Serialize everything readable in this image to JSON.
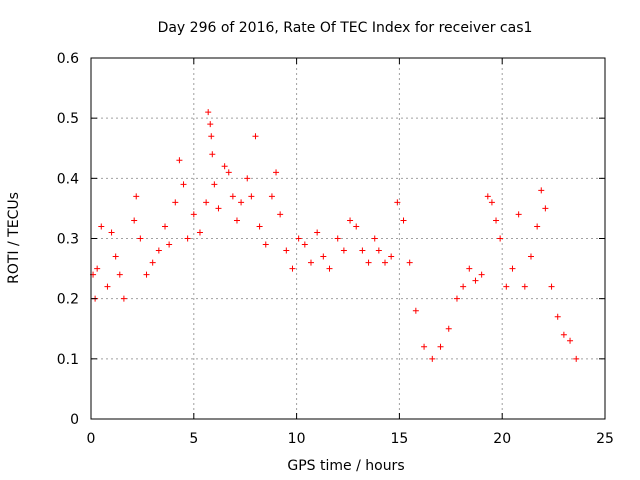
{
  "chart_data": {
    "type": "scatter",
    "title": "Day 296 of 2016, Rate Of TEC Index for receiver cas1",
    "xlabel": "GPS time / hours",
    "ylabel": "ROTI / TECUs",
    "xlim": [
      0,
      25
    ],
    "ylim": [
      0,
      0.6
    ],
    "xticks": [
      0,
      5,
      10,
      15,
      20,
      25
    ],
    "yticks": [
      0,
      0.1,
      0.2,
      0.3,
      0.4,
      0.5,
      0.6
    ],
    "xtick_labels": [
      "0",
      "5",
      "10",
      "15",
      "20",
      "25"
    ],
    "ytick_labels": [
      "0",
      "0.1",
      "0.2",
      "0.3",
      "0.4",
      "0.5",
      "0.6"
    ],
    "grid": true,
    "marker": "+",
    "series_color": "#ff0000",
    "series": [
      {
        "name": "ROTI",
        "points": [
          [
            0.1,
            0.24
          ],
          [
            0.2,
            0.2
          ],
          [
            0.3,
            0.25
          ],
          [
            0.5,
            0.32
          ],
          [
            0.8,
            0.22
          ],
          [
            1.0,
            0.31
          ],
          [
            1.2,
            0.27
          ],
          [
            1.4,
            0.24
          ],
          [
            1.6,
            0.2
          ],
          [
            2.1,
            0.33
          ],
          [
            2.2,
            0.37
          ],
          [
            2.4,
            0.3
          ],
          [
            2.7,
            0.24
          ],
          [
            3.0,
            0.26
          ],
          [
            3.3,
            0.28
          ],
          [
            3.6,
            0.32
          ],
          [
            3.8,
            0.29
          ],
          [
            4.1,
            0.36
          ],
          [
            4.3,
            0.43
          ],
          [
            4.5,
            0.39
          ],
          [
            4.7,
            0.3
          ],
          [
            5.0,
            0.34
          ],
          [
            5.3,
            0.31
          ],
          [
            5.6,
            0.36
          ],
          [
            5.7,
            0.51
          ],
          [
            5.8,
            0.49
          ],
          [
            5.85,
            0.47
          ],
          [
            5.9,
            0.44
          ],
          [
            6.0,
            0.39
          ],
          [
            6.2,
            0.35
          ],
          [
            6.5,
            0.42
          ],
          [
            6.7,
            0.41
          ],
          [
            6.9,
            0.37
          ],
          [
            7.1,
            0.33
          ],
          [
            7.3,
            0.36
          ],
          [
            7.6,
            0.4
          ],
          [
            7.8,
            0.37
          ],
          [
            8.0,
            0.47
          ],
          [
            8.2,
            0.32
          ],
          [
            8.5,
            0.29
          ],
          [
            8.8,
            0.37
          ],
          [
            9.0,
            0.41
          ],
          [
            9.2,
            0.34
          ],
          [
            9.5,
            0.28
          ],
          [
            9.8,
            0.25
          ],
          [
            10.1,
            0.3
          ],
          [
            10.4,
            0.29
          ],
          [
            10.7,
            0.26
          ],
          [
            11.0,
            0.31
          ],
          [
            11.3,
            0.27
          ],
          [
            11.6,
            0.25
          ],
          [
            12.0,
            0.3
          ],
          [
            12.3,
            0.28
          ],
          [
            12.6,
            0.33
          ],
          [
            12.9,
            0.32
          ],
          [
            13.2,
            0.28
          ],
          [
            13.5,
            0.26
          ],
          [
            13.8,
            0.3
          ],
          [
            14.0,
            0.28
          ],
          [
            14.3,
            0.26
          ],
          [
            14.6,
            0.27
          ],
          [
            14.9,
            0.36
          ],
          [
            15.2,
            0.33
          ],
          [
            15.5,
            0.26
          ],
          [
            15.8,
            0.18
          ],
          [
            16.2,
            0.12
          ],
          [
            16.6,
            0.1
          ],
          [
            17.0,
            0.12
          ],
          [
            17.4,
            0.15
          ],
          [
            17.8,
            0.2
          ],
          [
            18.1,
            0.22
          ],
          [
            18.4,
            0.25
          ],
          [
            18.7,
            0.23
          ],
          [
            19.0,
            0.24
          ],
          [
            19.3,
            0.37
          ],
          [
            19.5,
            0.36
          ],
          [
            19.7,
            0.33
          ],
          [
            19.9,
            0.3
          ],
          [
            20.2,
            0.22
          ],
          [
            20.5,
            0.25
          ],
          [
            20.8,
            0.34
          ],
          [
            21.1,
            0.22
          ],
          [
            21.4,
            0.27
          ],
          [
            21.7,
            0.32
          ],
          [
            21.9,
            0.38
          ],
          [
            22.1,
            0.35
          ],
          [
            22.4,
            0.22
          ],
          [
            22.7,
            0.17
          ],
          [
            23.0,
            0.14
          ],
          [
            23.3,
            0.13
          ],
          [
            23.6,
            0.1
          ]
        ]
      }
    ]
  }
}
